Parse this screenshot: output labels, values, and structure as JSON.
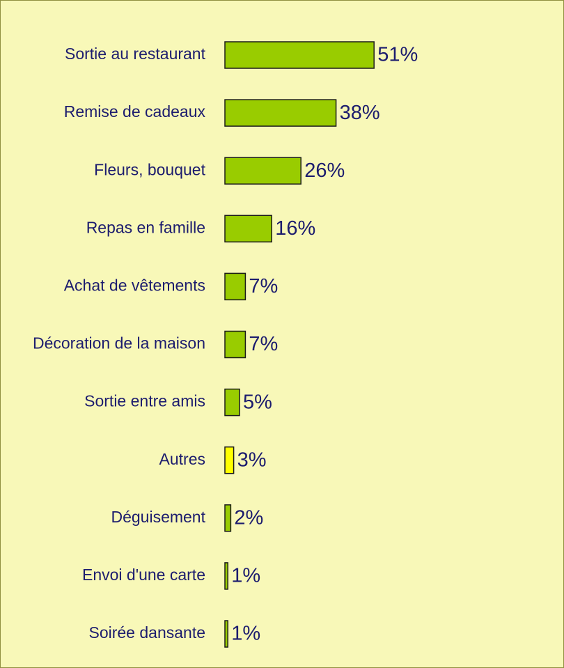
{
  "chart_data": {
    "type": "hbar",
    "categories": [
      "Sortie au restaurant",
      "Remise de cadeaux",
      "Fleurs, bouquet",
      "Repas en famille",
      "Achat de vêtements",
      "Décoration de la maison",
      "Sortie entre amis",
      "Autres",
      "Déguisement",
      "Envoi d'une carte",
      "Soirée dansante"
    ],
    "values": [
      51,
      38,
      26,
      16,
      7,
      7,
      5,
      3,
      2,
      1,
      1
    ],
    "value_labels": [
      "51%",
      "38%",
      "26%",
      "16%",
      "7%",
      "7%",
      "5%",
      "3%",
      "2%",
      "1%",
      "1%"
    ],
    "colors": [
      "#99cc00",
      "#99cc00",
      "#99cc00",
      "#99cc00",
      "#99cc00",
      "#99cc00",
      "#99cc00",
      "#ffff00",
      "#99cc00",
      "#99cc00",
      "#99cc00"
    ]
  }
}
